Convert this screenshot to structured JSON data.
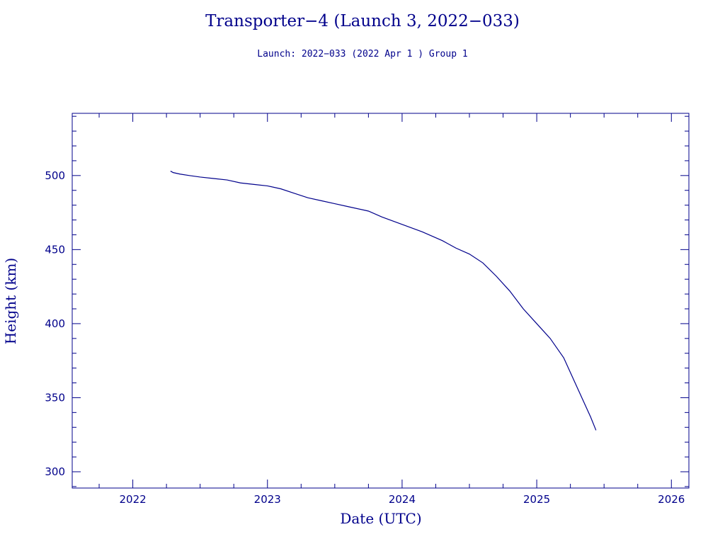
{
  "chart_data": {
    "type": "line",
    "title": "Transporter−4 (Launch 3, 2022−033)",
    "subtitle": "Launch: 2022−033  (2022 Apr  1 )  Group 1",
    "xlabel": "Date (UTC)",
    "ylabel": "Height (km)",
    "xlim": [
      2021.55,
      2026.13
    ],
    "ylim": [
      289,
      542
    ],
    "x_ticks": [
      2022,
      2023,
      2024,
      2025,
      2026
    ],
    "y_ticks": [
      300,
      350,
      400,
      450,
      500
    ],
    "x_minor_step": 0.25,
    "y_minor_step": 10,
    "grid": false,
    "color": "#00008b",
    "series": [
      {
        "x": [
          2022.28,
          2022.3,
          2022.35,
          2022.42,
          2022.5,
          2022.6,
          2022.7,
          2022.8,
          2022.9,
          2023.0,
          2023.1,
          2023.2,
          2023.3,
          2023.4,
          2023.5,
          2023.6,
          2023.75,
          2023.85,
          2024.0,
          2024.15,
          2024.3,
          2024.4,
          2024.5,
          2024.6,
          2024.7,
          2024.8,
          2024.9,
          2025.0,
          2025.1,
          2025.2,
          2025.3,
          2025.4,
          2025.44
        ],
        "y": [
          503,
          502,
          501,
          500,
          499,
          498,
          497,
          495,
          494,
          493,
          491,
          488,
          485,
          483,
          481,
          479,
          476,
          472,
          467,
          462,
          456,
          451,
          447,
          441,
          432,
          422,
          410,
          400,
          390,
          377,
          357,
          337,
          328
        ]
      }
    ]
  }
}
